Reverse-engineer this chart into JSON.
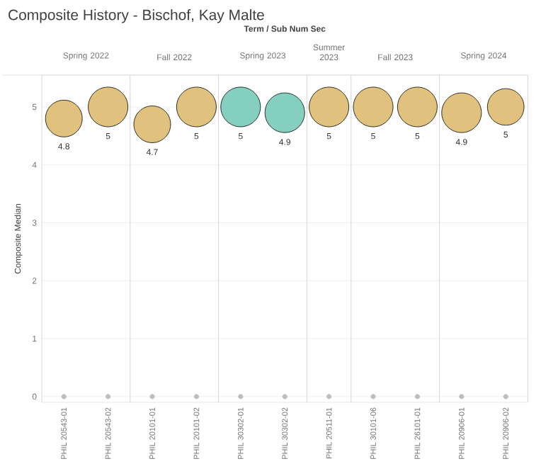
{
  "chart_data": [
    {
      "type": "bubble",
      "title": "Spring 2022",
      "ylabel": "Composite Median",
      "annotations": [
        "Composite History - Bischof, Kay Malte",
        "Term / Sub Num Sec"
      ],
      "categories": [
        "PHIL 20543-01",
        "PHIL 20543-02"
      ],
      "series": [
        {
          "values": [
            4.8,
            5
          ],
          "sizes": [
            0.86,
            1
          ],
          "colors": [
            "#e0c27e",
            "#e0c27e"
          ],
          "value_labels": [
            "4.8",
            "5"
          ]
        },
        {
          "type": "scatter",
          "values": [
            0,
            0
          ],
          "color": "#bdbdbd",
          "marker": "circle"
        }
      ],
      "ylim": [
        -0.1,
        5.55
      ],
      "yticks": [
        0,
        1,
        2,
        3,
        4,
        5
      ],
      "grid": "y"
    },
    {
      "type": "bubble",
      "title": "Fall 2022",
      "categories": [
        "PHIL 20101-01",
        "PHIL 20101-02"
      ],
      "series": [
        {
          "values": [
            4.7,
            5
          ],
          "sizes": [
            0.86,
            1
          ],
          "colors": [
            "#e0c27e",
            "#e0c27e"
          ],
          "value_labels": [
            "4.7",
            "5"
          ]
        },
        {
          "type": "scatter",
          "values": [
            0,
            0
          ],
          "color": "#bdbdbd",
          "marker": "circle"
        }
      ],
      "ylim": [
        -0.1,
        5.55
      ],
      "yticks": [
        0,
        1,
        2,
        3,
        4,
        5
      ],
      "grid": "y",
      "tick_labels": "x"
    },
    {
      "type": "bubble",
      "title": "Spring 2023",
      "categories": [
        "PHIL 30302-01",
        "PHIL 30302-02"
      ],
      "series": [
        {
          "values": [
            5,
            4.9
          ],
          "sizes": [
            1,
            1
          ],
          "colors": [
            "#85cfc0",
            "#85cfc0"
          ],
          "value_labels": [
            "5",
            "4.9"
          ]
        },
        {
          "type": "scatter",
          "values": [
            0,
            0
          ],
          "color": "#bdbdbd",
          "marker": "circle"
        }
      ],
      "ylim": [
        -0.1,
        5.55
      ],
      "yticks": [
        0,
        1,
        2,
        3,
        4,
        5
      ],
      "grid": "y",
      "tick_labels": "x"
    },
    {
      "type": "bubble",
      "title": "Summer 2023",
      "categories": [
        "PHIL 20511-01"
      ],
      "series": [
        {
          "values": [
            5
          ],
          "sizes": [
            1
          ],
          "colors": [
            "#e0c27e"
          ],
          "value_labels": [
            "5"
          ]
        },
        {
          "type": "scatter",
          "values": [
            0
          ],
          "color": "#bdbdbd",
          "marker": "circle"
        }
      ],
      "ylim": [
        -0.1,
        5.55
      ],
      "yticks": [
        0,
        1,
        2,
        3,
        4,
        5
      ],
      "grid": "y",
      "tick_labels": "x"
    },
    {
      "type": "bubble",
      "title": "Fall 2023",
      "categories": [
        "PHIL 30101-06",
        "PHIL 26101-01"
      ],
      "series": [
        {
          "values": [
            5,
            5
          ],
          "sizes": [
            1,
            1
          ],
          "colors": [
            "#e0c27e",
            "#e0c27e"
          ],
          "value_labels": [
            "5",
            "5"
          ]
        },
        {
          "type": "scatter",
          "values": [
            0,
            0
          ],
          "color": "#bdbdbd",
          "marker": "circle"
        }
      ],
      "ylim": [
        -0.1,
        5.55
      ],
      "yticks": [
        0,
        1,
        2,
        3,
        4,
        5
      ],
      "grid": "y",
      "tick_labels": "x"
    },
    {
      "type": "bubble",
      "title": "Spring 2024",
      "categories": [
        "PHIL 20906-01",
        "PHIL 20906-02"
      ],
      "series": [
        {
          "values": [
            4.9,
            5
          ],
          "sizes": [
            1,
            0.85
          ],
          "colors": [
            "#e0c27e",
            "#e0c27e"
          ],
          "value_labels": [
            "4.9",
            "5"
          ]
        },
        {
          "type": "scatter",
          "values": [
            0,
            0
          ],
          "color": "#bdbdbd",
          "marker": "circle"
        }
      ],
      "ylim": [
        -0.1,
        5.55
      ],
      "yticks": [
        0,
        1,
        2,
        3,
        4,
        5
      ],
      "grid": "y",
      "tick_labels": "x"
    }
  ]
}
